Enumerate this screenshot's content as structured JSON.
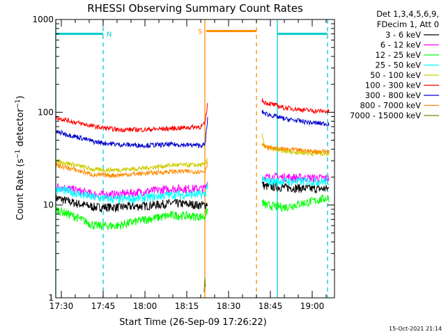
{
  "chart_data": {
    "type": "line",
    "title": "RHESSI Observing Summary Count Rates",
    "xlabel": "Start Time (26-Sep-09 17:26:22)",
    "ylabel_main": "Count Rate (s",
    "ylabel_sup1": "−1",
    "ylabel_mid": " detector",
    "ylabel_sup2": "−1",
    "ylabel_end": ")",
    "yscale": "log",
    "ylim": [
      1,
      1000
    ],
    "y_ticks": [
      {
        "value": 1,
        "label": "1"
      },
      {
        "value": 10,
        "label": "10"
      },
      {
        "value": 100,
        "label": "100"
      },
      {
        "value": 1000,
        "label": "1000"
      }
    ],
    "xlim_minutes": [
      -2.0,
      98.0
    ],
    "x_ticks": [
      {
        "minute": 0,
        "label": "17:30"
      },
      {
        "minute": 15,
        "label": "17:45"
      },
      {
        "minute": 30,
        "label": "18:00"
      },
      {
        "minute": 45,
        "label": "18:15"
      },
      {
        "minute": 60,
        "label": "18:30"
      },
      {
        "minute": 75,
        "label": "18:45"
      },
      {
        "minute": 90,
        "label": "19:00"
      }
    ],
    "legend_header": [
      "Det 1,3,4,5,6,9,",
      "FDecim 1, Att 0"
    ],
    "series": [
      {
        "name": "3 - 6 keV",
        "color": "#000000",
        "x": [
          -2,
          5,
          12,
          20,
          30,
          40,
          50,
          51.5,
          52.5,
          72,
          73,
          80,
          90,
          96
        ],
        "values": [
          12,
          10.5,
          9.5,
          9.5,
          9.8,
          10.5,
          10,
          10,
          10.5,
          17,
          16,
          15.5,
          15,
          15
        ]
      },
      {
        "name": "6 - 12 keV",
        "color": "#ff00ff",
        "x": [
          -2,
          5,
          12,
          20,
          30,
          40,
          50,
          51.5,
          52.5,
          72,
          73,
          80,
          90,
          96
        ],
        "values": [
          16,
          14.5,
          13,
          13,
          14,
          15,
          15,
          15,
          18,
          20,
          20,
          20,
          19.5,
          19.5
        ]
      },
      {
        "name": "12 - 25 keV",
        "color": "#00ff00",
        "x": [
          -2,
          5,
          12,
          20,
          30,
          40,
          50,
          51.5,
          52.5,
          72,
          73,
          80,
          90,
          96
        ],
        "values": [
          9,
          7.5,
          6,
          6,
          7,
          7.8,
          7.5,
          7.5,
          9,
          11,
          10,
          9.5,
          11,
          12
        ]
      },
      {
        "name": "25 - 50 keV",
        "color": "#00ffff",
        "x": [
          -2,
          5,
          12,
          20,
          30,
          40,
          50,
          51.5,
          52.5,
          72,
          73,
          80,
          90,
          96
        ],
        "values": [
          15,
          13.5,
          12,
          11.5,
          12,
          13,
          13,
          13,
          17,
          18.5,
          18,
          18,
          18,
          18
        ]
      },
      {
        "name": "50 - 100 keV",
        "color": "#cccc00",
        "x": [
          -2,
          5,
          12,
          20,
          30,
          40,
          50,
          51.5,
          52.5,
          72,
          73,
          80,
          90,
          96
        ],
        "values": [
          30,
          27,
          24,
          24,
          25,
          27,
          27,
          27,
          33,
          60,
          42,
          38,
          36,
          36
        ]
      },
      {
        "name": "100 - 300 keV",
        "color": "#ff0000",
        "x": [
          -2,
          5,
          12,
          20,
          30,
          40,
          50,
          51.5,
          52.5,
          72,
          73,
          80,
          90,
          96
        ],
        "values": [
          88,
          78,
          70,
          65,
          65,
          67,
          70,
          75,
          125,
          135,
          128,
          112,
          104,
          102
        ]
      },
      {
        "name": "300 - 800 keV",
        "color": "#0000cc",
        "x": [
          -2,
          5,
          12,
          20,
          30,
          40,
          50,
          51.5,
          52.5,
          72,
          73,
          80,
          90,
          96
        ],
        "values": [
          62,
          55,
          48,
          45,
          44,
          45,
          44,
          44,
          85,
          102,
          97,
          85,
          77,
          75
        ]
      },
      {
        "name": "800 - 7000 keV",
        "color": "#ff8c00",
        "x": [
          -2,
          5,
          12,
          20,
          30,
          40,
          50,
          51.5,
          52.5,
          72,
          73,
          80,
          90,
          96
        ],
        "values": [
          27,
          24,
          21,
          21,
          22,
          23,
          23,
          23,
          29,
          47,
          42,
          40,
          38,
          38
        ]
      },
      {
        "name": "7000 - 15000 keV",
        "color": "#808000",
        "x": [
          51.2,
          51.5,
          51.8
        ],
        "values": [
          1.1,
          1.6,
          1.2
        ]
      }
    ],
    "annotations": [
      {
        "text": "N",
        "color": "#00cccc",
        "level": 700,
        "from": -2.0,
        "to": 15.0
      },
      {
        "text": "S",
        "color": "#ff8c00",
        "level": 750,
        "from": 52.0,
        "to": 70.0
      },
      {
        "text": "",
        "color": "#00cccc",
        "level": 700,
        "from": 77.5,
        "to": 95.5
      }
    ],
    "vertical_markers": [
      {
        "minute": -2.0,
        "color": "#00cccc",
        "style": "solid"
      },
      {
        "minute": 15.0,
        "color": "#00cccc",
        "style": "dashed"
      },
      {
        "minute": 51.5,
        "color": "#ff8c00",
        "style": "solid"
      },
      {
        "minute": 70.0,
        "color": "#ff8c00",
        "style": "dashed"
      },
      {
        "minute": 77.5,
        "color": "#00cccc",
        "style": "solid"
      },
      {
        "minute": 95.5,
        "color": "#00cccc",
        "style": "dashed"
      }
    ],
    "gap_minutes": [
      52.5,
      72.0
    ],
    "footer_timestamp": "15-Oct-2021 21:14"
  }
}
